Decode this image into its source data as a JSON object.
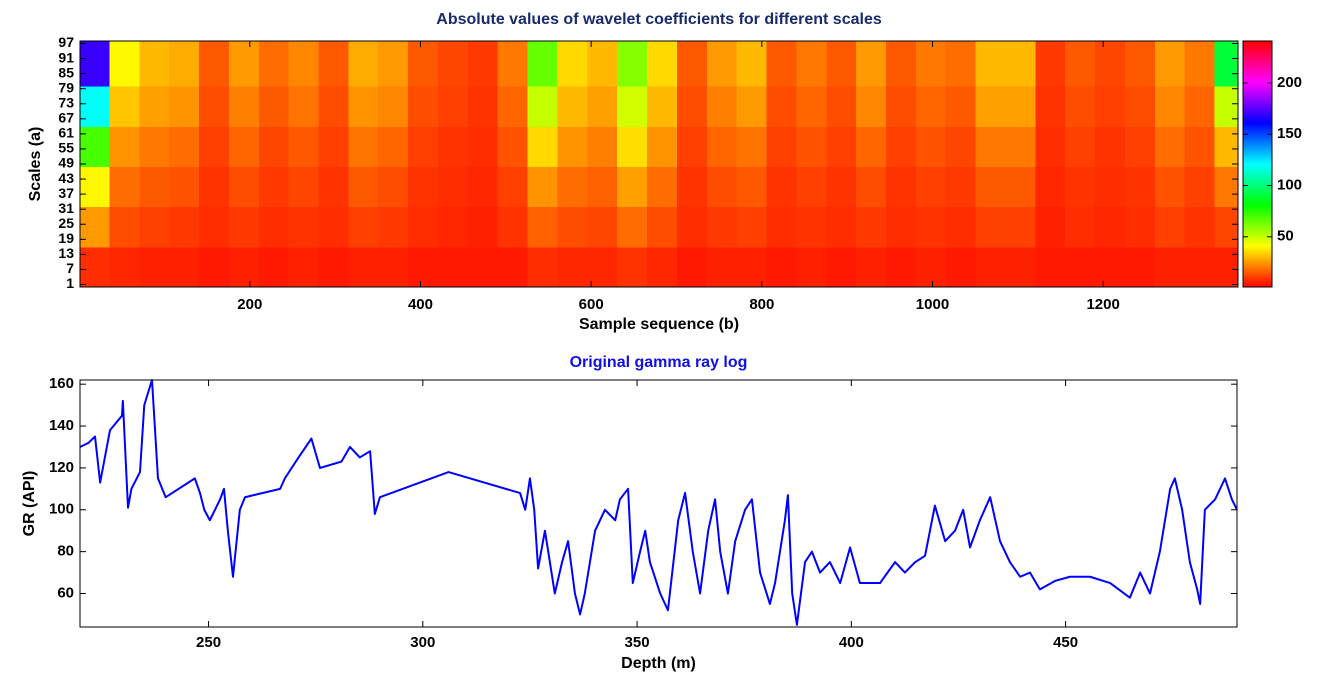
{
  "chart_data": [
    {
      "type": "heatmap",
      "title": "Absolute values of wavelet coefficients for different scales",
      "xlabel": "Sample sequence (b)",
      "ylabel": "Scales (a)",
      "colormap": "hsv",
      "x": [
        18,
        53,
        88,
        123,
        158,
        193,
        228,
        263,
        298,
        333,
        368,
        403,
        438,
        473,
        508,
        543,
        578,
        613,
        648,
        683,
        718,
        753,
        788,
        823,
        858,
        893,
        928,
        963,
        998,
        1033,
        1068,
        1103,
        1138,
        1173,
        1208,
        1243,
        1278,
        1313,
        1348
      ],
      "y": [
        8,
        24,
        40,
        56,
        72,
        88
      ],
      "z": [
        [
          8,
          7,
          6,
          6,
          5,
          6,
          5,
          6,
          5,
          6,
          6,
          5,
          5,
          5,
          5,
          8,
          7,
          7,
          9,
          7,
          5,
          6,
          6,
          5,
          6,
          5,
          6,
          5,
          6,
          5,
          6,
          6,
          5,
          5,
          5,
          5,
          6,
          6,
          6
        ],
        [
          25,
          13,
          11,
          10,
          8,
          10,
          8,
          9,
          8,
          11,
          10,
          8,
          7,
          6,
          9,
          16,
          13,
          12,
          18,
          13,
          8,
          10,
          11,
          8,
          9,
          8,
          10,
          8,
          9,
          8,
          11,
          11,
          6,
          8,
          7,
          8,
          11,
          9,
          12
        ],
        [
          40,
          18,
          15,
          14,
          9,
          13,
          10,
          12,
          9,
          15,
          13,
          9,
          8,
          7,
          11,
          24,
          18,
          16,
          26,
          18,
          9,
          13,
          15,
          9,
          11,
          9,
          13,
          9,
          11,
          10,
          15,
          15,
          7,
          9,
          8,
          9,
          14,
          11,
          20
        ],
        [
          70,
          24,
          20,
          18,
          11,
          17,
          12,
          15,
          11,
          19,
          17,
          11,
          9,
          8,
          14,
          35,
          24,
          21,
          36,
          24,
          11,
          17,
          19,
          11,
          14,
          11,
          17,
          11,
          14,
          12,
          20,
          20,
          8,
          11,
          9,
          11,
          18,
          14,
          30
        ],
        [
          120,
          32,
          26,
          24,
          13,
          21,
          15,
          19,
          13,
          24,
          22,
          13,
          11,
          9,
          17,
          50,
          30,
          26,
          48,
          30,
          13,
          21,
          25,
          13,
          17,
          13,
          22,
          13,
          17,
          15,
          26,
          26,
          9,
          13,
          11,
          13,
          22,
          17,
          50
        ],
        [
          170,
          40,
          30,
          28,
          15,
          25,
          18,
          22,
          15,
          28,
          25,
          15,
          12,
          10,
          20,
          65,
          35,
          30,
          60,
          35,
          15,
          25,
          30,
          15,
          20,
          15,
          25,
          15,
          20,
          18,
          30,
          30,
          10,
          15,
          12,
          15,
          25,
          20,
          90
        ]
      ],
      "xlim": [
        1,
        1358
      ],
      "ylim": [
        0,
        98
      ],
      "xticks": [
        200,
        400,
        600,
        800,
        1000,
        1200
      ],
      "yticks": [
        1,
        7,
        13,
        19,
        25,
        31,
        37,
        43,
        49,
        55,
        61,
        67,
        73,
        79,
        85,
        91,
        97
      ],
      "clim": [
        1,
        241
      ],
      "cticks": [
        50,
        100,
        150,
        200
      ]
    },
    {
      "type": "line",
      "title": "Original gamma ray log",
      "xlabel": "Depth (m)",
      "ylabel": "GR (API)",
      "color": "#0000ff",
      "x": [
        220,
        222,
        223.5,
        224.7,
        227,
        229.8,
        230,
        231.2,
        232,
        234,
        235,
        236.8,
        238.2,
        240,
        246.8,
        248,
        249,
        250.3,
        252.7,
        253.6,
        254.5,
        255.7,
        257.3,
        258.5,
        266.7,
        267.8,
        271,
        274,
        276,
        281,
        283,
        285.3,
        287.7,
        288.8,
        290,
        306,
        322.7,
        323.9,
        325,
        326,
        326.9,
        328.5,
        330.8,
        332.5,
        333.9,
        335.5,
        336.7,
        337.8,
        340.2,
        342.5,
        344.9,
        346,
        347.9,
        349,
        350.7,
        351.9,
        353,
        355.4,
        357.2,
        359.6,
        361.2,
        363,
        364.7,
        366.6,
        368.2,
        369.4,
        371.2,
        372.9,
        375.2,
        376.8,
        378.7,
        381,
        382.2,
        384.5,
        385.2,
        386.2,
        387.3,
        389.2,
        390.8,
        392.7,
        395,
        397.4,
        399.7,
        402,
        406.7,
        410.2,
        412.5,
        414.9,
        417.2,
        419.5,
        421.9,
        424.2,
        426.1,
        427.7,
        430,
        432.4,
        434.7,
        437,
        439.4,
        441.7,
        444,
        447.5,
        451,
        455.7,
        460.4,
        465,
        467.4,
        469.7,
        472,
        474.4,
        475.5,
        477.2,
        479,
        480.7,
        481.4,
        482.5,
        484.9,
        487.2,
        488.8,
        490
      ],
      "values": [
        130,
        132,
        135,
        113,
        138,
        145,
        152,
        101,
        110,
        118,
        150,
        162,
        115,
        106,
        115,
        108,
        100,
        95,
        105,
        110,
        90,
        68,
        100,
        106,
        110,
        115,
        125,
        134,
        120,
        123,
        130,
        125,
        128,
        98,
        106,
        118,
        108,
        100,
        115,
        100,
        72,
        90,
        60,
        75,
        85,
        60,
        50,
        60,
        90,
        100,
        95,
        105,
        110,
        65,
        80,
        90,
        75,
        60,
        52,
        95,
        108,
        80,
        60,
        90,
        105,
        80,
        60,
        85,
        100,
        105,
        70,
        55,
        65,
        95,
        107,
        60,
        45,
        75,
        80,
        70,
        75,
        65,
        82,
        65,
        65,
        75,
        70,
        75,
        78,
        102,
        85,
        90,
        100,
        82,
        95,
        106,
        85,
        75,
        68,
        70,
        62,
        66,
        68,
        68,
        65,
        58,
        70,
        60,
        80,
        110,
        115,
        100,
        75,
        62,
        55,
        100,
        105,
        115,
        105,
        100
      ],
      "xlim": [
        220,
        490
      ],
      "ylim": [
        44,
        162
      ],
      "xticks": [
        250,
        300,
        350,
        400,
        450
      ],
      "yticks": [
        60,
        80,
        100,
        120,
        140,
        160
      ]
    }
  ]
}
